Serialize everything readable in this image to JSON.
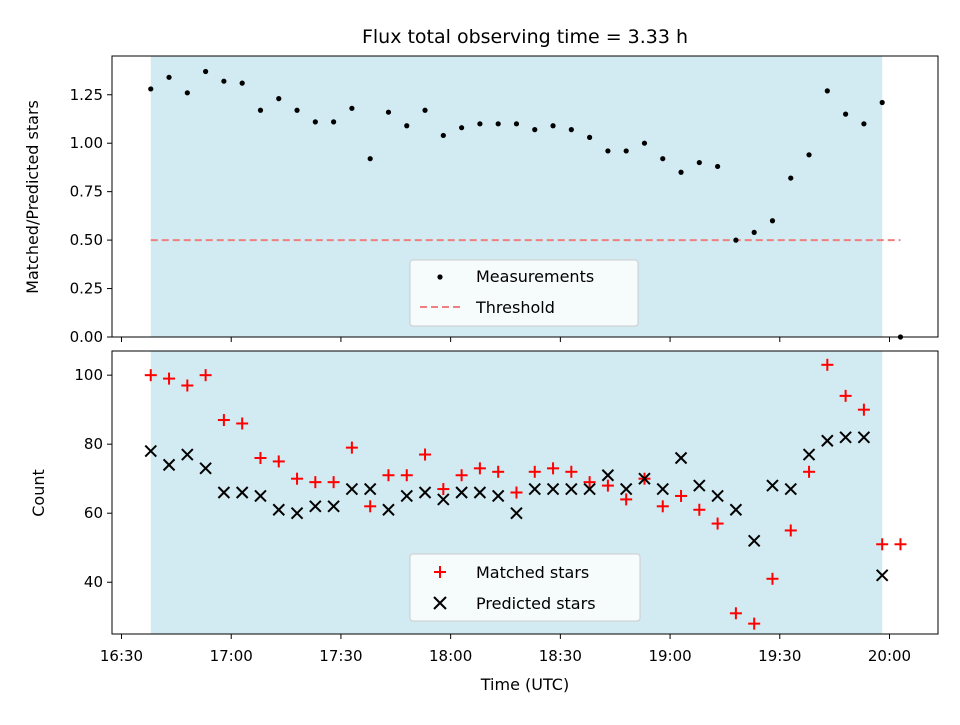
{
  "chart_data": [
    {
      "type": "scatter",
      "title": "Flux total observing time = 3.33 h",
      "ylabel": "Matched/Predicted stars",
      "ylim": [
        0,
        1.45
      ],
      "yticks": [
        "0.00",
        "0.25",
        "0.50",
        "0.75",
        "1.00",
        "1.25"
      ],
      "observing_window": {
        "start": "16:38",
        "end": "19:58",
        "color": "#add8e6"
      },
      "series": [
        {
          "name": "Measurements",
          "marker": "dot",
          "color": "#000000",
          "x": [
            "16:38",
            "16:43",
            "16:48",
            "16:53",
            "16:58",
            "17:03",
            "17:08",
            "17:13",
            "17:18",
            "17:23",
            "17:28",
            "17:33",
            "17:38",
            "17:43",
            "17:48",
            "17:53",
            "17:58",
            "18:03",
            "18:08",
            "18:13",
            "18:18",
            "18:23",
            "18:28",
            "18:33",
            "18:38",
            "18:43",
            "18:48",
            "18:53",
            "18:58",
            "19:03",
            "19:08",
            "19:13",
            "19:18",
            "19:23",
            "19:28",
            "19:33",
            "19:38",
            "19:43",
            "19:48",
            "19:53",
            "19:58",
            "20:03"
          ],
          "y": [
            1.28,
            1.34,
            1.26,
            1.37,
            1.32,
            1.31,
            1.17,
            1.23,
            1.17,
            1.11,
            1.11,
            1.18,
            0.92,
            1.16,
            1.09,
            1.17,
            1.04,
            1.08,
            1.1,
            1.1,
            1.1,
            1.07,
            1.09,
            1.07,
            1.03,
            0.96,
            0.96,
            1.0,
            0.92,
            0.85,
            0.9,
            0.88,
            0.5,
            0.54,
            0.6,
            0.82,
            0.94,
            1.27,
            1.15,
            1.1,
            1.21,
            0.0
          ]
        },
        {
          "name": "Threshold",
          "marker": "dashed-line",
          "color": "#f08080",
          "value": 0.5,
          "x_range": [
            "16:38",
            "20:03"
          ]
        }
      ],
      "legend": {
        "placement": "lower-center",
        "entries": [
          "Measurements",
          "Threshold"
        ]
      }
    },
    {
      "type": "scatter",
      "xlabel": "Time (UTC)",
      "ylabel": "Count",
      "ylim": [
        25,
        107
      ],
      "yticks": [
        "40",
        "60",
        "80",
        "100"
      ],
      "xticks": [
        "16:30",
        "17:00",
        "17:30",
        "18:00",
        "18:30",
        "19:00",
        "19:30",
        "20:00"
      ],
      "observing_window": {
        "start": "16:38",
        "end": "19:58",
        "color": "#add8e6"
      },
      "series": [
        {
          "name": "Matched stars",
          "marker": "plus",
          "color": "#ff0000",
          "x": [
            "16:38",
            "16:43",
            "16:48",
            "16:53",
            "16:58",
            "17:03",
            "17:08",
            "17:13",
            "17:18",
            "17:23",
            "17:28",
            "17:33",
            "17:38",
            "17:43",
            "17:48",
            "17:53",
            "17:58",
            "18:03",
            "18:08",
            "18:13",
            "18:18",
            "18:23",
            "18:28",
            "18:33",
            "18:38",
            "18:43",
            "18:48",
            "18:53",
            "18:58",
            "19:03",
            "19:08",
            "19:13",
            "19:18",
            "19:23",
            "19:28",
            "19:33",
            "19:38",
            "19:43",
            "19:48",
            "19:53",
            "19:58",
            "20:03"
          ],
          "y": [
            100,
            99,
            97,
            100,
            87,
            86,
            76,
            75,
            70,
            69,
            69,
            79,
            62,
            71,
            71,
            77,
            67,
            71,
            73,
            72,
            66,
            72,
            73,
            72,
            69,
            68,
            64,
            70,
            62,
            65,
            61,
            57,
            31,
            28,
            41,
            55,
            72,
            103,
            94,
            90,
            51,
            51
          ]
        },
        {
          "name": "Predicted stars",
          "marker": "x",
          "color": "#000000",
          "x": [
            "16:38",
            "16:43",
            "16:48",
            "16:53",
            "16:58",
            "17:03",
            "17:08",
            "17:13",
            "17:18",
            "17:23",
            "17:28",
            "17:33",
            "17:38",
            "17:43",
            "17:48",
            "17:53",
            "17:58",
            "18:03",
            "18:08",
            "18:13",
            "18:18",
            "18:23",
            "18:28",
            "18:33",
            "18:38",
            "18:43",
            "18:48",
            "18:53",
            "18:58",
            "19:03",
            "19:08",
            "19:13",
            "19:18",
            "19:23",
            "19:28",
            "19:33",
            "19:38",
            "19:43",
            "19:48",
            "19:53",
            "19:58"
          ],
          "y": [
            78,
            74,
            77,
            73,
            66,
            66,
            65,
            61,
            60,
            62,
            62,
            67,
            67,
            61,
            65,
            66,
            64,
            66,
            66,
            65,
            60,
            67,
            67,
            67,
            67,
            71,
            67,
            70,
            67,
            76,
            68,
            65,
            61,
            52,
            68,
            67,
            77,
            81,
            82,
            82,
            42
          ]
        }
      ],
      "legend": {
        "placement": "lower-center",
        "entries": [
          "Matched stars",
          "Predicted stars"
        ]
      }
    }
  ]
}
